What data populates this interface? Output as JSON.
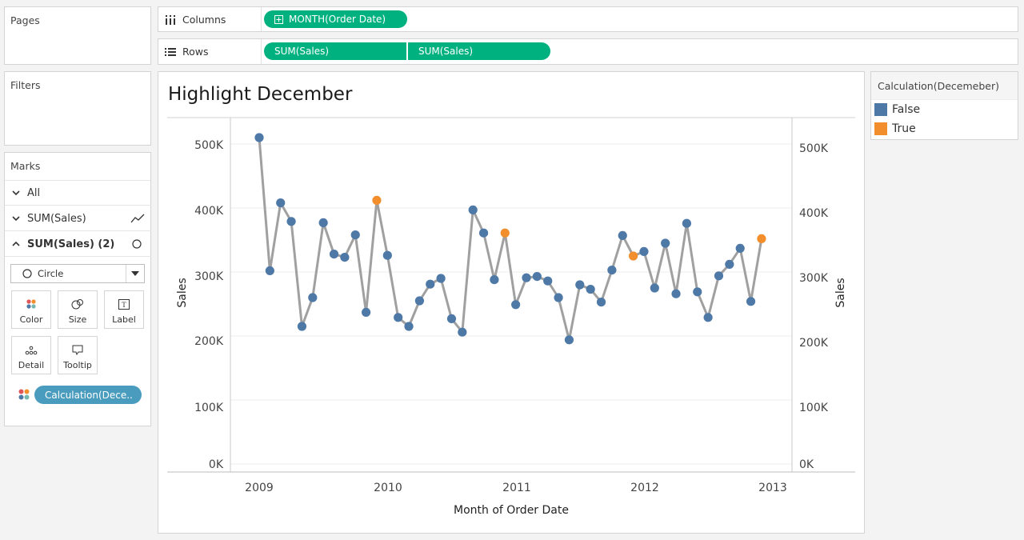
{
  "pages_panel": {
    "title": "Pages"
  },
  "filters_panel": {
    "title": "Filters"
  },
  "marks_panel": {
    "title": "Marks",
    "rows": [
      {
        "label": "All",
        "icon": "chevron-down-icon"
      },
      {
        "label": "SUM(Sales)",
        "icon": "chevron-down-icon",
        "right_icon": "line-mark-icon"
      },
      {
        "label": "SUM(Sales) (2)",
        "icon": "chevron-up-icon",
        "right_icon": "circle-mark-icon"
      }
    ],
    "mark_type": "Circle",
    "cards": {
      "color": "Color",
      "size": "Size",
      "label": "Label",
      "detail": "Detail",
      "tooltip": "Tooltip"
    },
    "color_pill": "Calculation(Dece.."
  },
  "columns_shelf": {
    "label": "Columns",
    "pills": [
      "MONTH(Order Date)"
    ]
  },
  "rows_shelf": {
    "label": "Rows",
    "pills": [
      "SUM(Sales)",
      "SUM(Sales)"
    ]
  },
  "view": {
    "title": "Highlight December",
    "x_axis_label": "Month of Order Date",
    "y_axis_label_left": "Sales",
    "y_axis_label_right": "Sales",
    "x_ticks": [
      "2009",
      "2010",
      "2011",
      "2012",
      "2013"
    ],
    "y_ticks_left": [
      "500K",
      "400K",
      "300K",
      "200K",
      "100K",
      "0K"
    ],
    "y_ticks_right": [
      "500K",
      "400K",
      "300K",
      "200K",
      "100K",
      "0K"
    ]
  },
  "legend": {
    "title": "Calculation(Decemeber)",
    "items": [
      {
        "label": "False",
        "color": "#4e79a7"
      },
      {
        "label": "True",
        "color": "#f28e2b"
      }
    ]
  },
  "chart_data": {
    "type": "line",
    "title": "Highlight December",
    "xlabel": "Month of Order Date",
    "ylabel": "Sales",
    "ylim": [
      0,
      540000
    ],
    "x_start": "2009-01",
    "line_color": "#a0a0a0",
    "colors": {
      "False": "#4e79a7",
      "True": "#f28e2b"
    },
    "series": [
      {
        "values": [
          510000,
          302000,
          408000,
          379000,
          215000,
          260000,
          377000,
          328000,
          323000,
          358000,
          237000,
          412000,
          326000,
          229000,
          215000,
          255000,
          281000,
          290000,
          227000,
          206000,
          397000,
          361000,
          288000,
          361000,
          249000,
          291000,
          293000,
          286000,
          260000,
          194000,
          280000,
          273000,
          253000,
          303000,
          357000,
          325000,
          332000,
          275000,
          345000,
          266000,
          376000,
          269000,
          229000,
          294000,
          312000,
          337000,
          254000,
          352000
        ]
      }
    ],
    "highlight": "December"
  }
}
